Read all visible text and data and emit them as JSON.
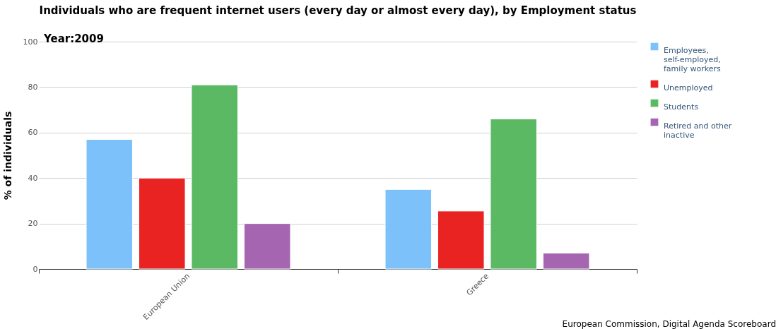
{
  "chart_data": {
    "type": "bar",
    "title": "Individuals who are frequent internet users (every day or almost every day), by Employment status",
    "subtitle": "Year:2009",
    "ylabel": "% of individuals",
    "categories": [
      "European Union",
      "Greece"
    ],
    "series": [
      {
        "name": "Employees, self-employed, family workers",
        "color": "#7cc1fa",
        "values": [
          57,
          35
        ]
      },
      {
        "name": "Unemployed",
        "color": "#e82321",
        "values": [
          40,
          25.5
        ]
      },
      {
        "name": "Students",
        "color": "#5bb963",
        "values": [
          81,
          66
        ]
      },
      {
        "name": "Retired and other inactive",
        "color": "#a665b1",
        "values": [
          20,
          7
        ]
      }
    ],
    "ylim": [
      0,
      100
    ],
    "yticks": [
      0,
      20,
      40,
      60,
      80,
      100
    ],
    "grid": "y",
    "legend": "top right",
    "annotations": [
      "European Commission, Digital Agenda Scoreboard"
    ]
  }
}
